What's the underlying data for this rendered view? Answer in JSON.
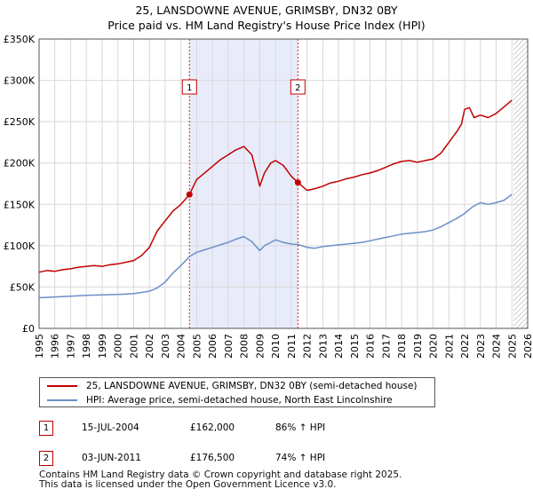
{
  "title_line1": "25, LANSDOWNE AVENUE, GRIMSBY, DN32 0BY",
  "title_line2": "Price paid vs. HM Land Registry's House Price Index (HPI)",
  "legend": {
    "property": "25, LANSDOWNE AVENUE, GRIMSBY, DN32 0BY (semi-detached house)",
    "hpi": "HPI: Average price, semi-detached house, North East Lincolnshire"
  },
  "transactions": [
    {
      "id": "1",
      "date": "15-JUL-2004",
      "price": "£162,000",
      "delta": "86% ↑ HPI"
    },
    {
      "id": "2",
      "date": "03-JUN-2011",
      "price": "£176,500",
      "delta": "74% ↑ HPI"
    }
  ],
  "footer_line1": "Contains HM Land Registry data © Crown copyright and database right 2025.",
  "footer_line2": "This data is licensed under the Open Government Licence v3.0.",
  "colors": {
    "property": "#c00000",
    "hpi": "#6b8fc8",
    "shade": "#e8ecfa",
    "marker_line": "#cc2222"
  },
  "chart_data": {
    "type": "line",
    "x_ticks": [
      "1995",
      "1996",
      "1997",
      "1998",
      "1999",
      "2000",
      "2001",
      "2002",
      "2003",
      "2004",
      "2005",
      "2006",
      "2007",
      "2008",
      "2009",
      "2010",
      "2011",
      "2012",
      "2013",
      "2014",
      "2015",
      "2016",
      "2017",
      "2018",
      "2019",
      "2020",
      "2021",
      "2022",
      "2023",
      "2024",
      "2025",
      "2026"
    ],
    "y_ticks": [
      "£0",
      "£50K",
      "£100K",
      "£150K",
      "£200K",
      "£250K",
      "£300K",
      "£350K"
    ],
    "xlim": [
      1995,
      2026
    ],
    "ylim": [
      0,
      350000
    ],
    "grid": true,
    "shaded_period": [
      2004.54,
      2011.42
    ],
    "forecast_from": 2025.1,
    "markers": [
      {
        "label": "1",
        "x": 2004.54,
        "y": 162000
      },
      {
        "label": "2",
        "x": 2011.42,
        "y": 176500
      }
    ],
    "series": [
      {
        "name": "25, LANSDOWNE AVENUE, GRIMSBY, DN32 0BY (semi-detached house)",
        "x": [
          1995.0,
          1995.5,
          1996.0,
          1996.5,
          1997.0,
          1997.5,
          1998.0,
          1998.5,
          1999.0,
          1999.5,
          2000.0,
          2000.5,
          2001.0,
          2001.5,
          2002.0,
          2002.5,
          2003.0,
          2003.5,
          2004.0,
          2004.54,
          2005.0,
          2005.5,
          2006.0,
          2006.5,
          2007.0,
          2007.5,
          2008.0,
          2008.5,
          2008.8,
          2009.0,
          2009.3,
          2009.7,
          2010.0,
          2010.5,
          2011.0,
          2011.42,
          2011.7,
          2012.0,
          2012.5,
          2013.0,
          2013.5,
          2014.0,
          2014.5,
          2015.0,
          2015.5,
          2016.0,
          2016.5,
          2017.0,
          2017.5,
          2018.0,
          2018.5,
          2019.0,
          2019.5,
          2020.0,
          2020.5,
          2021.0,
          2021.5,
          2021.8,
          2022.0,
          2022.3,
          2022.6,
          2023.0,
          2023.5,
          2024.0,
          2024.5,
          2025.0
        ],
        "y": [
          68000,
          70000,
          69000,
          71000,
          72000,
          74000,
          75000,
          76000,
          75000,
          77000,
          78000,
          80000,
          82000,
          88000,
          98000,
          118000,
          130000,
          142000,
          150000,
          162000,
          180000,
          188000,
          196000,
          204000,
          210000,
          216000,
          220000,
          210000,
          188000,
          172000,
          188000,
          200000,
          203000,
          197000,
          184000,
          176500,
          172000,
          167000,
          169000,
          172000,
          176000,
          178000,
          181000,
          183000,
          186000,
          188000,
          191000,
          195000,
          199000,
          202000,
          203000,
          201000,
          203000,
          205000,
          212000,
          225000,
          238000,
          247000,
          265000,
          267000,
          255000,
          258000,
          255000,
          260000,
          268000,
          276000
        ]
      },
      {
        "name": "HPI: Average price, semi-detached house, North East Lincolnshire",
        "x": [
          1995.0,
          1996.0,
          1997.0,
          1998.0,
          1999.0,
          2000.0,
          2001.0,
          2002.0,
          2002.5,
          2003.0,
          2003.5,
          2004.0,
          2004.54,
          2005.0,
          2005.5,
          2006.0,
          2006.5,
          2007.0,
          2007.5,
          2008.0,
          2008.5,
          2009.0,
          2009.3,
          2009.7,
          2010.0,
          2010.5,
          2011.0,
          2011.42,
          2012.0,
          2012.5,
          2013.0,
          2013.5,
          2014.0,
          2014.5,
          2015.0,
          2015.5,
          2016.0,
          2016.5,
          2017.0,
          2017.5,
          2018.0,
          2018.5,
          2019.0,
          2019.5,
          2020.0,
          2020.5,
          2021.0,
          2021.5,
          2022.0,
          2022.5,
          2023.0,
          2023.5,
          2024.0,
          2024.5,
          2025.0
        ],
        "y": [
          37000,
          38000,
          39000,
          40000,
          40500,
          41000,
          42000,
          45000,
          49000,
          56000,
          67000,
          76000,
          87000,
          92000,
          95000,
          98000,
          101000,
          104000,
          108000,
          111000,
          105000,
          94000,
          100000,
          104000,
          107000,
          104000,
          102000,
          101500,
          98000,
          97000,
          99000,
          100000,
          101000,
          102000,
          103000,
          104000,
          106000,
          108000,
          110000,
          112000,
          114000,
          115000,
          116000,
          117000,
          119000,
          123000,
          128000,
          133000,
          139000,
          147000,
          152000,
          150000,
          152000,
          155000,
          162000
        ]
      }
    ]
  }
}
